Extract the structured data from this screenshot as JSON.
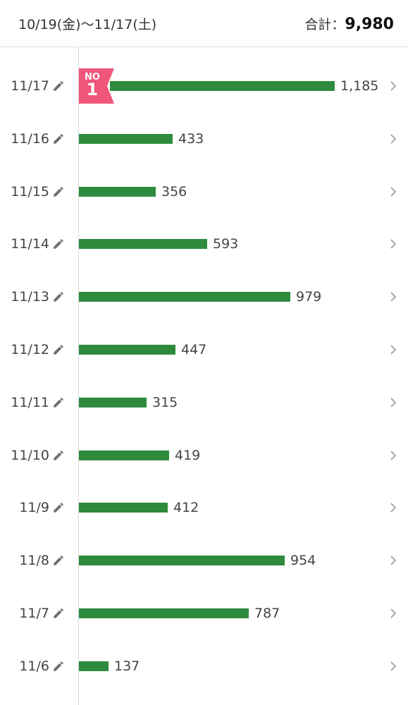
{
  "header": {
    "date_range": "10/19(金)〜11/17(土)",
    "total_label": "合計：",
    "total_value": "9,980"
  },
  "badge": {
    "prefix": "NO",
    "rank": "1"
  },
  "colors": {
    "bar": "#2e8b3e",
    "badge": "#f0567a"
  },
  "chart_data": {
    "type": "bar",
    "orientation": "horizontal",
    "categories": [
      "11/17",
      "11/16",
      "11/15",
      "11/14",
      "11/13",
      "11/12",
      "11/11",
      "11/10",
      "11/9",
      "11/8",
      "11/7",
      "11/6"
    ],
    "values": [
      1185,
      433,
      356,
      593,
      979,
      447,
      315,
      419,
      412,
      954,
      787,
      137
    ],
    "value_labels": [
      "1,185",
      "433",
      "356",
      "593",
      "979",
      "447",
      "315",
      "419",
      "412",
      "954",
      "787",
      "137"
    ]
  }
}
